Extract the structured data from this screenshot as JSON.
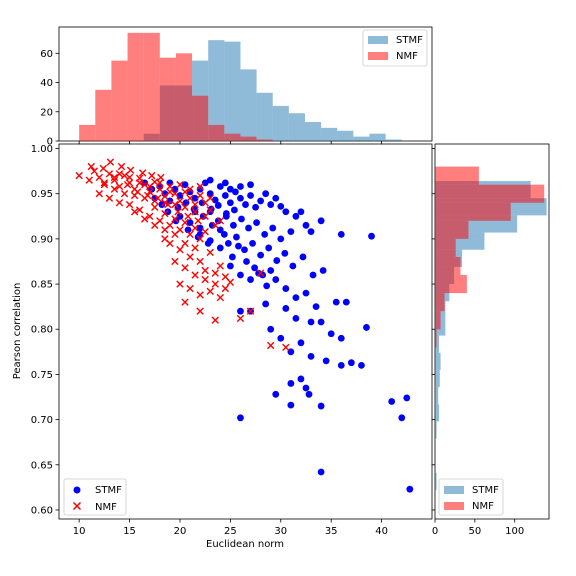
{
  "chart_data": {
    "type": "scatter",
    "xlabel": "Euclidean norm",
    "ylabel": "Pearson correlation",
    "xlim": [
      8,
      45
    ],
    "ylim": [
      0.59,
      1.005
    ],
    "x_ticks": [
      10,
      15,
      20,
      25,
      30,
      35,
      40
    ],
    "y_ticks": [
      0.6,
      0.65,
      0.7,
      0.75,
      0.8,
      0.85,
      0.9,
      0.95,
      1.0
    ],
    "legend_position": "lower-left",
    "series": [
      {
        "name": "STMF",
        "marker": "circle",
        "color": "#0000ff",
        "points": [
          [
            16.5,
            0.962
          ],
          [
            17.2,
            0.955
          ],
          [
            18.0,
            0.958
          ],
          [
            18.5,
            0.95
          ],
          [
            19.0,
            0.962
          ],
          [
            19.5,
            0.955
          ],
          [
            20.0,
            0.948
          ],
          [
            20.5,
            0.96
          ],
          [
            21.0,
            0.952
          ],
          [
            21.5,
            0.945
          ],
          [
            22.0,
            0.955
          ],
          [
            22.5,
            0.962
          ],
          [
            23.0,
            0.95
          ],
          [
            23.5,
            0.943
          ],
          [
            24.0,
            0.958
          ],
          [
            24.5,
            0.948
          ],
          [
            25.0,
            0.94
          ],
          [
            25.5,
            0.952
          ],
          [
            26.0,
            0.945
          ],
          [
            26.5,
            0.938
          ],
          [
            27.0,
            0.948
          ],
          [
            27.5,
            0.935
          ],
          [
            28.0,
            0.942
          ],
          [
            29.0,
            0.938
          ],
          [
            30.0,
            0.936
          ],
          [
            21.5,
            0.93
          ],
          [
            22.3,
            0.925
          ],
          [
            23.1,
            0.933
          ],
          [
            23.8,
            0.92
          ],
          [
            24.6,
            0.928
          ],
          [
            25.3,
            0.915
          ],
          [
            26.1,
            0.922
          ],
          [
            26.8,
            0.912
          ],
          [
            27.6,
            0.918
          ],
          [
            28.4,
            0.905
          ],
          [
            29.2,
            0.912
          ],
          [
            30.0,
            0.9
          ],
          [
            31.0,
            0.908
          ],
          [
            32.0,
            0.93
          ],
          [
            33.0,
            0.908
          ],
          [
            34.0,
            0.92
          ],
          [
            36.0,
            0.905
          ],
          [
            39.0,
            0.903
          ],
          [
            22.0,
            0.905
          ],
          [
            23.0,
            0.898
          ],
          [
            24.0,
            0.91
          ],
          [
            24.8,
            0.895
          ],
          [
            25.6,
            0.902
          ],
          [
            26.4,
            0.888
          ],
          [
            27.2,
            0.895
          ],
          [
            28.0,
            0.882
          ],
          [
            28.8,
            0.89
          ],
          [
            29.6,
            0.876
          ],
          [
            30.4,
            0.884
          ],
          [
            31.2,
            0.87
          ],
          [
            32.2,
            0.88
          ],
          [
            33.2,
            0.86
          ],
          [
            34.2,
            0.865
          ],
          [
            25.0,
            0.87
          ],
          [
            26.0,
            0.86
          ],
          [
            27.0,
            0.855
          ],
          [
            27.8,
            0.862
          ],
          [
            28.6,
            0.848
          ],
          [
            29.5,
            0.855
          ],
          [
            30.5,
            0.845
          ],
          [
            31.5,
            0.835
          ],
          [
            32.5,
            0.84
          ],
          [
            33.5,
            0.825
          ],
          [
            35.5,
            0.83
          ],
          [
            36.5,
            0.83
          ],
          [
            26.0,
            0.82
          ],
          [
            27.0,
            0.82
          ],
          [
            28.5,
            0.828
          ],
          [
            30.5,
            0.823
          ],
          [
            31.5,
            0.812
          ],
          [
            33.0,
            0.808
          ],
          [
            34.0,
            0.808
          ],
          [
            35.0,
            0.795
          ],
          [
            36.0,
            0.79
          ],
          [
            38.5,
            0.802
          ],
          [
            29.0,
            0.8
          ],
          [
            30.0,
            0.79
          ],
          [
            31.0,
            0.775
          ],
          [
            32.0,
            0.785
          ],
          [
            33.0,
            0.77
          ],
          [
            34.5,
            0.765
          ],
          [
            36.0,
            0.76
          ],
          [
            37.0,
            0.763
          ],
          [
            38.0,
            0.76
          ],
          [
            32.0,
            0.745
          ],
          [
            32.5,
            0.735
          ],
          [
            31.0,
            0.74
          ],
          [
            29.5,
            0.728
          ],
          [
            31.0,
            0.716
          ],
          [
            32.8,
            0.728
          ],
          [
            34.0,
            0.715
          ],
          [
            26.0,
            0.702
          ],
          [
            41.0,
            0.72
          ],
          [
            42.5,
            0.724
          ],
          [
            42.0,
            0.702
          ],
          [
            34.0,
            0.642
          ],
          [
            42.8,
            0.623
          ],
          [
            17.5,
            0.945
          ],
          [
            18.2,
            0.938
          ],
          [
            19.0,
            0.942
          ],
          [
            19.8,
            0.935
          ],
          [
            20.6,
            0.94
          ],
          [
            21.4,
            0.933
          ],
          [
            22.2,
            0.94
          ],
          [
            23.0,
            0.93
          ],
          [
            23.8,
            0.937
          ],
          [
            24.6,
            0.925
          ],
          [
            25.4,
            0.932
          ],
          [
            20.0,
            0.925
          ],
          [
            21.0,
            0.918
          ],
          [
            22.0,
            0.912
          ],
          [
            23.2,
            0.915
          ],
          [
            24.4,
            0.905
          ],
          [
            25.8,
            0.892
          ],
          [
            26.6,
            0.875
          ],
          [
            27.4,
            0.868
          ],
          [
            28.2,
            0.86
          ],
          [
            29.0,
            0.865
          ],
          [
            24.0,
            0.89
          ],
          [
            25.2,
            0.88
          ],
          [
            22.8,
            0.895
          ],
          [
            21.8,
            0.902
          ],
          [
            20.8,
            0.91
          ],
          [
            19.6,
            0.92
          ],
          [
            18.8,
            0.93
          ],
          [
            25.0,
            0.955
          ],
          [
            26.0,
            0.958
          ],
          [
            27.0,
            0.96
          ],
          [
            23.0,
            0.965
          ],
          [
            24.5,
            0.962
          ],
          [
            28.5,
            0.95
          ],
          [
            29.5,
            0.945
          ],
          [
            30.5,
            0.93
          ],
          [
            31.5,
            0.925
          ],
          [
            32.5,
            0.915
          ]
        ]
      },
      {
        "name": "NMF",
        "marker": "x",
        "color": "#ff0000",
        "points": [
          [
            10.0,
            0.97
          ],
          [
            11.0,
            0.965
          ],
          [
            11.5,
            0.975
          ],
          [
            12.0,
            0.968
          ],
          [
            12.5,
            0.96
          ],
          [
            13.0,
            0.972
          ],
          [
            13.5,
            0.965
          ],
          [
            14.0,
            0.958
          ],
          [
            14.5,
            0.97
          ],
          [
            15.0,
            0.962
          ],
          [
            15.5,
            0.955
          ],
          [
            16.0,
            0.967
          ],
          [
            16.5,
            0.96
          ],
          [
            17.0,
            0.952
          ],
          [
            17.5,
            0.963
          ],
          [
            18.0,
            0.955
          ],
          [
            18.5,
            0.947
          ],
          [
            19.0,
            0.958
          ],
          [
            19.5,
            0.95
          ],
          [
            20.0,
            0.942
          ],
          [
            20.5,
            0.952
          ],
          [
            21.0,
            0.945
          ],
          [
            21.5,
            0.938
          ],
          [
            22.0,
            0.948
          ],
          [
            22.5,
            0.94
          ],
          [
            23.0,
            0.932
          ],
          [
            11.2,
            0.98
          ],
          [
            12.4,
            0.978
          ],
          [
            13.1,
            0.985
          ],
          [
            14.2,
            0.98
          ],
          [
            15.1,
            0.976
          ],
          [
            16.3,
            0.973
          ],
          [
            17.2,
            0.97
          ],
          [
            18.1,
            0.968
          ],
          [
            12.0,
            0.95
          ],
          [
            13.0,
            0.945
          ],
          [
            14.0,
            0.94
          ],
          [
            15.0,
            0.938
          ],
          [
            16.0,
            0.932
          ],
          [
            17.0,
            0.925
          ],
          [
            18.0,
            0.92
          ],
          [
            19.0,
            0.915
          ],
          [
            20.0,
            0.91
          ],
          [
            21.0,
            0.905
          ],
          [
            22.0,
            0.9
          ],
          [
            17.5,
            0.935
          ],
          [
            18.5,
            0.928
          ],
          [
            19.5,
            0.922
          ],
          [
            20.5,
            0.918
          ],
          [
            21.5,
            0.912
          ],
          [
            22.5,
            0.908
          ],
          [
            23.5,
            0.915
          ],
          [
            24.0,
            0.92
          ],
          [
            19.0,
            0.895
          ],
          [
            20.0,
            0.888
          ],
          [
            21.0,
            0.88
          ],
          [
            22.0,
            0.875
          ],
          [
            23.0,
            0.885
          ],
          [
            24.0,
            0.87
          ],
          [
            18.5,
            0.9
          ],
          [
            19.5,
            0.875
          ],
          [
            20.5,
            0.868
          ],
          [
            21.5,
            0.86
          ],
          [
            22.5,
            0.855
          ],
          [
            23.5,
            0.85
          ],
          [
            24.5,
            0.845
          ],
          [
            25.0,
            0.852
          ],
          [
            20.0,
            0.85
          ],
          [
            21.0,
            0.845
          ],
          [
            22.0,
            0.838
          ],
          [
            23.0,
            0.842
          ],
          [
            24.0,
            0.835
          ],
          [
            20.5,
            0.83
          ],
          [
            22.0,
            0.82
          ],
          [
            23.5,
            0.81
          ],
          [
            26.0,
            0.812
          ],
          [
            27.0,
            0.82
          ],
          [
            28.0,
            0.862
          ],
          [
            29.0,
            0.782
          ],
          [
            30.5,
            0.78
          ],
          [
            13.5,
            0.955
          ],
          [
            14.5,
            0.95
          ],
          [
            15.5,
            0.948
          ],
          [
            16.5,
            0.945
          ],
          [
            17.5,
            0.942
          ],
          [
            18.5,
            0.94
          ],
          [
            19.5,
            0.938
          ],
          [
            20.5,
            0.935
          ],
          [
            21.5,
            0.93
          ],
          [
            22.5,
            0.925
          ],
          [
            14.0,
            0.972
          ],
          [
            15.0,
            0.968
          ],
          [
            16.0,
            0.962
          ],
          [
            17.0,
            0.958
          ],
          [
            18.0,
            0.962
          ],
          [
            19.0,
            0.952
          ],
          [
            20.0,
            0.96
          ],
          [
            21.0,
            0.955
          ],
          [
            22.0,
            0.958
          ],
          [
            23.0,
            0.945
          ],
          [
            12.5,
            0.962
          ],
          [
            13.5,
            0.968
          ],
          [
            14.8,
            0.96
          ],
          [
            15.8,
            0.952
          ],
          [
            16.8,
            0.948
          ],
          [
            17.8,
            0.945
          ],
          [
            18.8,
            0.938
          ],
          [
            19.8,
            0.93
          ],
          [
            20.8,
            0.925
          ],
          [
            21.8,
            0.92
          ],
          [
            15.5,
            0.93
          ],
          [
            16.5,
            0.922
          ],
          [
            17.5,
            0.915
          ],
          [
            18.5,
            0.91
          ],
          [
            19.5,
            0.905
          ],
          [
            20.5,
            0.895
          ],
          [
            21.5,
            0.89
          ],
          [
            22.5,
            0.865
          ],
          [
            23.5,
            0.862
          ],
          [
            24.5,
            0.858
          ]
        ]
      }
    ],
    "top_histogram": {
      "bins_edges": [
        10,
        11.6,
        13.2,
        14.8,
        16.4,
        18.0,
        19.6,
        21.2,
        22.8,
        24.4,
        26.0,
        27.6,
        29.2,
        30.8,
        32.4,
        34.0,
        35.6,
        37.2,
        38.8,
        40.4,
        42.0
      ],
      "y_ticks": [
        0,
        20,
        40,
        60
      ],
      "ylim": [
        0,
        78
      ],
      "stmf_edges": [
        16.4,
        18.0,
        19.6,
        21.2,
        22.8,
        24.4,
        26.0,
        27.6,
        29.2,
        30.8,
        32.4,
        34.0,
        35.6,
        37.2,
        38.8,
        40.4,
        42.0
      ],
      "stmf_counts": [
        5,
        38,
        38,
        55,
        69,
        68,
        49,
        33,
        24,
        19,
        13,
        9,
        7,
        3,
        5,
        1
      ],
      "nmf_edges": [
        10,
        11.6,
        13.2,
        14.8,
        16.4,
        18.0,
        19.6,
        21.2,
        22.8,
        24.4,
        26.0,
        27.6,
        29.2
      ],
      "nmf_counts": [
        11,
        35,
        55,
        74,
        74,
        57,
        60,
        31,
        11,
        5,
        3,
        1
      ],
      "legend_position": "top-right"
    },
    "right_histogram": {
      "x_ticks": [
        0,
        50,
        100
      ],
      "xlim": [
        0,
        143
      ],
      "stmf_edges": [
        0.622,
        0.641,
        0.66,
        0.679,
        0.698,
        0.717,
        0.736,
        0.755,
        0.774,
        0.793,
        0.812,
        0.831,
        0.85,
        0.869,
        0.888,
        0.907,
        0.926,
        0.945,
        0.964
      ],
      "stmf_counts": [
        2,
        0,
        0,
        2,
        5,
        4,
        6,
        7,
        5,
        13,
        13,
        18,
        24,
        34,
        62,
        103,
        140,
        120
      ],
      "nmf_edges": [
        0.78,
        0.8,
        0.82,
        0.84,
        0.86,
        0.88,
        0.9,
        0.92,
        0.94,
        0.96,
        0.98
      ],
      "nmf_counts": [
        2,
        7,
        12,
        40,
        32,
        26,
        42,
        95,
        137,
        55
      ],
      "legend_position": "lower-left"
    }
  }
}
